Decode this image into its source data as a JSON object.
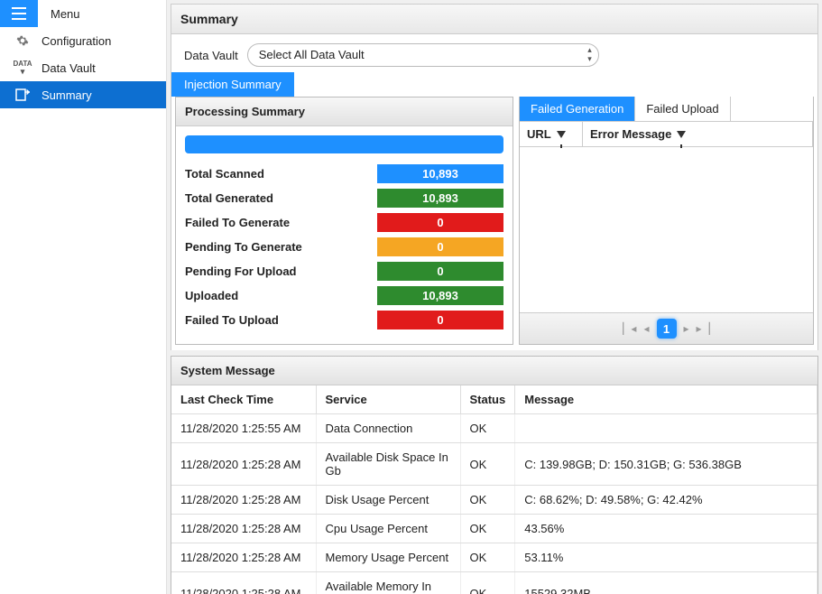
{
  "sidebar": {
    "items": [
      {
        "label": "Menu",
        "icon": "hamburger"
      },
      {
        "label": "Configuration",
        "icon": "gear"
      },
      {
        "label": "Data Vault",
        "icon": "data"
      },
      {
        "label": "Summary",
        "icon": "summary"
      }
    ],
    "active_index": 3
  },
  "page": {
    "title": "Summary"
  },
  "filter": {
    "label": "Data Vault",
    "selected": "Select All Data Vault"
  },
  "main_tabs": {
    "items": [
      "Injection Summary"
    ],
    "active_index": 0
  },
  "processing": {
    "title": "Processing Summary",
    "progress_color": "#1e90ff",
    "stats": [
      {
        "label": "Total Scanned",
        "value": "10,893",
        "color": "#1e90ff"
      },
      {
        "label": "Total Generated",
        "value": "10,893",
        "color": "#2e8b2e"
      },
      {
        "label": "Failed To Generate",
        "value": "0",
        "color": "#e11b1b"
      },
      {
        "label": "Pending To Generate",
        "value": "0",
        "color": "#f5a623"
      },
      {
        "label": "Pending For Upload",
        "value": "0",
        "color": "#2e8b2e"
      },
      {
        "label": "Uploaded",
        "value": "10,893",
        "color": "#2e8b2e"
      },
      {
        "label": "Failed To Upload",
        "value": "0",
        "color": "#e11b1b"
      }
    ]
  },
  "failed": {
    "tabs": [
      "Failed Generation",
      "Failed Upload"
    ],
    "active_index": 0,
    "columns": [
      "URL",
      "Error Message"
    ],
    "pager": {
      "current": "1"
    }
  },
  "system": {
    "title": "System Message",
    "columns": [
      "Last Check Time",
      "Service",
      "Status",
      "Message"
    ],
    "rows": [
      [
        "11/28/2020 1:25:55 AM",
        "Data Connection",
        "OK",
        ""
      ],
      [
        "11/28/2020 1:25:28 AM",
        "Available Disk Space In Gb",
        "OK",
        "C: 139.98GB; D: 150.31GB; G: 536.38GB"
      ],
      [
        "11/28/2020 1:25:28 AM",
        "Disk Usage Percent",
        "OK",
        "C: 68.62%; D: 49.58%; G: 42.42%"
      ],
      [
        "11/28/2020 1:25:28 AM",
        "Cpu Usage Percent",
        "OK",
        "43.56%"
      ],
      [
        "11/28/2020 1:25:28 AM",
        "Memory Usage Percent",
        "OK",
        "53.11%"
      ],
      [
        "11/28/2020 1:25:28 AM",
        "Available Memory In Mb",
        "OK",
        "15529.32MB"
      ]
    ]
  },
  "colors": {
    "accent": "#1e90ff",
    "sidebar_active": "#0d6fd1",
    "panel_border": "#bbbbbb"
  }
}
